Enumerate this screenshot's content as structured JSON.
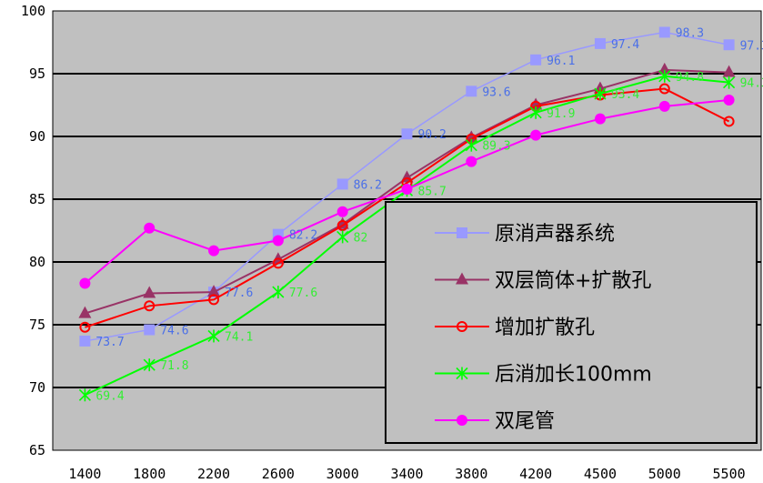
{
  "chart_data": {
    "type": "line",
    "title": "",
    "xlabel": "",
    "ylabel": "",
    "categories": [
      "1400",
      "1800",
      "2200",
      "2600",
      "3000",
      "3400",
      "3800",
      "4200",
      "4500",
      "5000",
      "5500"
    ],
    "ylim": [
      65,
      100
    ],
    "yticks": [
      "65",
      "70",
      "75",
      "80",
      "85",
      "90",
      "95",
      "100"
    ],
    "grid": true,
    "legend": "bottom-right",
    "background": "#c0c0c0",
    "series": [
      {
        "name": "原消声器系统",
        "color": "#9999ff",
        "label_color": "#4a6fe8",
        "marker": "square",
        "values": [
          73.7,
          74.6,
          77.6,
          82.2,
          86.2,
          90.2,
          93.6,
          96.1,
          97.4,
          98.3,
          97.3
        ],
        "labeled": true
      },
      {
        "name": "双层筒体+扩散孔",
        "color": "#993366",
        "marker": "triangle",
        "values": [
          75.9,
          77.5,
          77.6,
          80.2,
          83.0,
          86.7,
          89.9,
          92.5,
          93.8,
          95.3,
          95.1
        ],
        "labeled": false
      },
      {
        "name": "增加扩散孔",
        "color": "#ff0000",
        "marker": "open-circle",
        "values": [
          74.8,
          76.5,
          77.0,
          79.9,
          82.9,
          86.3,
          89.8,
          92.4,
          93.3,
          93.8,
          91.2
        ],
        "labeled": false
      },
      {
        "name": "后消加长100mm",
        "color": "#00ff00",
        "label_color": "#33ee33",
        "marker": "asterisk",
        "values": [
          69.4,
          71.8,
          74.1,
          77.6,
          82,
          85.7,
          89.3,
          91.9,
          93.4,
          94.8,
          94.3
        ],
        "labeled": true
      },
      {
        "name": "双尾管",
        "color": "#ff00ff",
        "marker": "filled-circle",
        "values": [
          78.3,
          82.7,
          80.9,
          81.7,
          84.0,
          85.8,
          88.0,
          90.1,
          91.4,
          92.4,
          92.9
        ],
        "labeled": false
      }
    ]
  }
}
